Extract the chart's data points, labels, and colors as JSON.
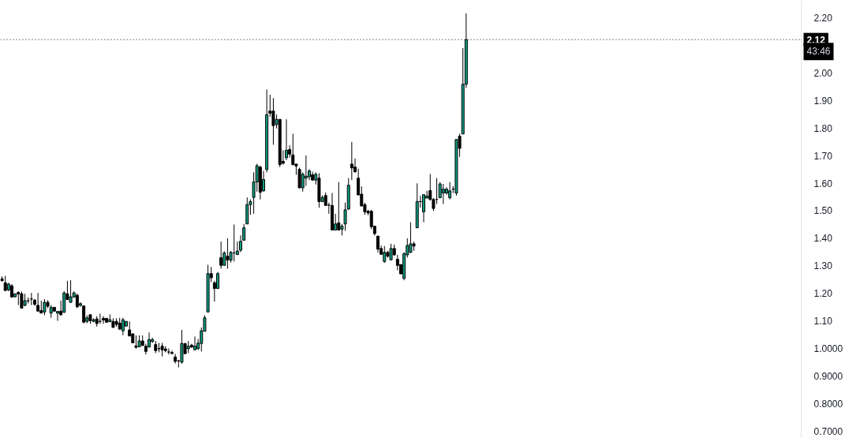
{
  "chart_data": {
    "type": "candlestick",
    "categories": [
      null,
      null,
      null,
      null,
      null,
      null,
      null,
      null,
      null,
      null,
      null,
      null,
      null,
      null,
      null,
      null,
      null,
      null,
      null,
      null,
      null,
      null,
      null,
      null,
      null,
      null,
      null,
      null,
      null,
      null,
      null,
      null,
      null,
      null,
      null,
      null,
      null,
      null,
      null,
      null,
      null,
      null,
      null,
      null,
      null,
      null,
      null,
      null,
      null,
      null,
      null,
      null,
      null,
      null,
      null,
      null,
      null,
      null,
      null,
      null,
      null,
      null,
      null,
      null,
      null,
      null,
      null,
      null,
      null,
      null,
      null,
      null,
      null,
      null,
      null,
      null,
      null,
      null,
      null,
      null,
      null,
      null,
      null,
      null,
      null,
      null,
      null,
      null,
      null,
      null,
      null,
      null,
      null,
      null,
      null,
      null,
      null,
      null,
      null,
      null,
      null,
      null,
      null,
      null,
      null,
      null,
      null,
      null,
      null,
      null,
      null,
      null,
      null,
      null,
      null,
      null,
      null,
      null,
      null,
      null,
      null,
      null,
      null,
      null,
      null,
      null,
      null,
      null,
      null,
      null,
      null,
      null,
      null,
      null,
      null,
      null,
      null,
      null,
      null,
      null,
      null,
      null,
      null,
      null,
      null,
      null,
      null,
      null,
      null,
      null,
      null,
      null,
      null,
      null,
      null,
      null,
      null,
      null,
      null,
      null,
      null,
      null,
      null,
      null,
      null,
      null,
      null,
      null,
      null,
      null,
      null,
      null,
      null,
      null,
      null,
      null,
      null,
      null,
      null,
      null,
      null,
      null,
      null,
      null,
      null,
      null,
      null,
      null,
      null,
      null,
      null,
      null,
      null,
      null,
      null,
      null,
      null,
      null,
      null,
      null,
      null,
      null,
      null,
      null,
      null,
      null,
      null,
      null,
      null,
      null,
      null,
      null,
      null,
      null,
      null,
      null,
      null,
      null,
      null,
      null,
      null,
      null,
      null,
      null,
      null,
      null,
      null,
      null,
      null,
      null,
      null,
      null,
      null,
      null,
      null,
      null,
      null,
      null,
      null,
      null,
      null,
      null,
      null,
      null,
      null
    ],
    "ohlc": [
      [
        1.253,
        1.262,
        1.244,
        1.246
      ],
      [
        1.239,
        1.264,
        1.208,
        1.211
      ],
      [
        1.213,
        1.239,
        1.208,
        1.234
      ],
      [
        1.228,
        1.234,
        1.187,
        1.187
      ],
      [
        1.188,
        1.199,
        1.186,
        1.199
      ],
      [
        1.204,
        1.208,
        1.158,
        1.198
      ],
      [
        1.199,
        1.207,
        1.147,
        1.147
      ],
      [
        1.157,
        1.199,
        1.154,
        1.174
      ],
      [
        1.174,
        1.186,
        1.164,
        1.174
      ],
      [
        1.18,
        1.202,
        1.158,
        1.18
      ],
      [
        1.176,
        1.18,
        1.155,
        1.161
      ],
      [
        1.157,
        1.202,
        1.136,
        1.136
      ],
      [
        1.138,
        1.174,
        1.129,
        1.129
      ],
      [
        1.133,
        1.18,
        1.121,
        1.168
      ],
      [
        1.168,
        1.176,
        1.147,
        1.154
      ],
      [
        1.129,
        1.158,
        1.112,
        1.15
      ],
      [
        1.15,
        1.15,
        1.136,
        1.136
      ],
      [
        1.129,
        1.135,
        1.101,
        1.135
      ],
      [
        1.136,
        1.174,
        1.12,
        1.123
      ],
      [
        1.132,
        1.208,
        1.13,
        1.202
      ],
      [
        1.199,
        1.246,
        1.177,
        1.178
      ],
      [
        1.168,
        1.248,
        1.166,
        1.188
      ],
      [
        1.187,
        1.208,
        1.187,
        1.202
      ],
      [
        1.194,
        1.199,
        1.147,
        1.152
      ],
      [
        1.157,
        1.168,
        1.152,
        1.163
      ],
      [
        1.155,
        1.155,
        1.092,
        1.096
      ],
      [
        1.099,
        1.121,
        1.092,
        1.112
      ],
      [
        1.123,
        1.123,
        1.09,
        1.101
      ],
      [
        1.099,
        1.11,
        1.096,
        1.105
      ],
      [
        1.108,
        1.118,
        1.08,
        1.091
      ],
      [
        1.099,
        1.127,
        1.09,
        1.099
      ],
      [
        1.11,
        1.118,
        1.09,
        1.104
      ],
      [
        1.11,
        1.11,
        1.094,
        1.096
      ],
      [
        1.098,
        1.124,
        1.096,
        1.105
      ],
      [
        1.099,
        1.11,
        1.077,
        1.077
      ],
      [
        1.099,
        1.11,
        1.08,
        1.088
      ],
      [
        1.093,
        1.112,
        1.068,
        1.071
      ],
      [
        1.065,
        1.112,
        1.049,
        1.105
      ],
      [
        1.082,
        1.099,
        1.08,
        1.099
      ],
      [
        1.068,
        1.099,
        1.046,
        1.046
      ],
      [
        1.054,
        1.054,
        1.021,
        1.021
      ],
      [
        1.01,
        1.048,
        1.0,
        1.005
      ],
      [
        1.007,
        1.048,
        1.007,
        1.028
      ],
      [
        1.028,
        1.048,
        1.009,
        1.012
      ],
      [
        1.009,
        1.018,
        0.979,
        0.99
      ],
      [
        1.007,
        1.059,
        1.003,
        1.033
      ],
      [
        1.026,
        1.04,
        1.021,
        1.033
      ],
      [
        1.015,
        1.028,
        0.984,
        0.993
      ],
      [
        1.0,
        1.021,
        0.987,
        1.0
      ],
      [
        1.009,
        1.021,
        0.972,
        0.996
      ],
      [
        0.999,
        1.009,
        0.987,
        0.993
      ],
      [
        0.988,
        1.001,
        0.979,
        0.988
      ],
      [
        0.986,
        0.993,
        0.979,
        0.983
      ],
      [
        0.97,
        0.981,
        0.946,
        0.954
      ],
      [
        0.956,
        0.959,
        0.932,
        0.956
      ],
      [
        0.951,
        1.068,
        0.946,
        1.019
      ],
      [
        1.019,
        1.019,
        0.982,
        0.982
      ],
      [
        1.0,
        1.028,
        0.984,
        1.009
      ],
      [
        1.013,
        1.018,
        1.003,
        1.006
      ],
      [
        0.996,
        1.044,
        0.996,
        1.009
      ],
      [
        1.0,
        1.035,
        0.996,
        1.02
      ],
      [
        1.019,
        1.077,
        0.99,
        1.065
      ],
      [
        1.063,
        1.121,
        1.063,
        1.112
      ],
      [
        1.133,
        1.304,
        1.133,
        1.272
      ],
      [
        1.272,
        1.296,
        1.241,
        1.257
      ],
      [
        1.239,
        1.246,
        1.171,
        1.218
      ],
      [
        1.218,
        1.278,
        1.218,
        1.272
      ],
      [
        1.33,
        1.388,
        1.29,
        1.302
      ],
      [
        1.302,
        1.353,
        1.302,
        1.347
      ],
      [
        1.335,
        1.4,
        1.29,
        1.321
      ],
      [
        1.321,
        1.354,
        1.312,
        1.349
      ],
      [
        1.347,
        1.45,
        1.316,
        1.347
      ],
      [
        1.341,
        1.388,
        1.341,
        1.354
      ],
      [
        1.357,
        1.411,
        1.35,
        1.389
      ],
      [
        1.393,
        1.452,
        1.393,
        1.438
      ],
      [
        1.452,
        1.548,
        1.452,
        1.522
      ],
      [
        1.522,
        1.541,
        1.485,
        1.533
      ],
      [
        1.548,
        1.639,
        1.489,
        1.604
      ],
      [
        1.604,
        1.67,
        1.569,
        1.663
      ],
      [
        1.658,
        1.663,
        1.541,
        1.567
      ],
      [
        1.572,
        1.644,
        1.569,
        1.613
      ],
      [
        1.649,
        1.939,
        1.639,
        1.848
      ],
      [
        1.861,
        1.92,
        1.84,
        1.853
      ],
      [
        1.861,
        1.908,
        1.739,
        1.808
      ],
      [
        1.812,
        1.848,
        1.798,
        1.831
      ],
      [
        1.831,
        1.831,
        1.658,
        1.667
      ],
      [
        1.679,
        1.719,
        1.667,
        1.672
      ],
      [
        1.692,
        1.831,
        1.683,
        1.719
      ],
      [
        1.722,
        1.737,
        1.692,
        1.705
      ],
      [
        1.702,
        1.779,
        1.664,
        1.667
      ],
      [
        1.669,
        1.669,
        1.63,
        1.662
      ],
      [
        1.65,
        1.656,
        1.581,
        1.583
      ],
      [
        1.583,
        1.639,
        1.569,
        1.632
      ],
      [
        1.618,
        1.7,
        1.59,
        1.625
      ],
      [
        1.623,
        1.65,
        1.611,
        1.644
      ],
      [
        1.63,
        1.641,
        1.609,
        1.611
      ],
      [
        1.611,
        1.639,
        1.595,
        1.632
      ],
      [
        1.618,
        1.636,
        1.511,
        1.533
      ],
      [
        1.533,
        1.555,
        1.531,
        1.548
      ],
      [
        1.555,
        1.566,
        1.519,
        1.519
      ],
      [
        1.52,
        1.529,
        1.489,
        1.52
      ],
      [
        1.519,
        1.564,
        1.43,
        1.43
      ],
      [
        1.43,
        1.489,
        1.43,
        1.452
      ],
      [
        1.456,
        1.604,
        1.43,
        1.43
      ],
      [
        1.433,
        1.452,
        1.41,
        1.444
      ],
      [
        1.452,
        1.529,
        1.427,
        1.503
      ],
      [
        1.506,
        1.618,
        1.503,
        1.592
      ],
      [
        1.669,
        1.749,
        1.611,
        1.655
      ],
      [
        1.658,
        1.689,
        1.638,
        1.641
      ],
      [
        1.618,
        1.652,
        1.557,
        1.557
      ],
      [
        1.56,
        1.588,
        1.517,
        1.517
      ],
      [
        1.522,
        1.529,
        1.485,
        1.496
      ],
      [
        1.498,
        1.503,
        1.484,
        1.492
      ],
      [
        1.498,
        1.503,
        1.433,
        1.442
      ],
      [
        1.444,
        1.444,
        1.41,
        1.417
      ],
      [
        1.408,
        1.408,
        1.349,
        1.361
      ],
      [
        1.363,
        1.374,
        1.342,
        1.342
      ],
      [
        1.316,
        1.372,
        1.311,
        1.349
      ],
      [
        1.349,
        1.354,
        1.33,
        1.335
      ],
      [
        1.322,
        1.38,
        1.322,
        1.363
      ],
      [
        1.363,
        1.377,
        1.337,
        1.34
      ],
      [
        1.324,
        1.34,
        1.284,
        1.302
      ],
      [
        1.305,
        1.305,
        1.271,
        1.271
      ],
      [
        1.255,
        1.35,
        1.248,
        1.344
      ],
      [
        1.34,
        1.4,
        1.33,
        1.374
      ],
      [
        1.349,
        1.458,
        1.347,
        1.38
      ],
      [
        1.38,
        1.388,
        1.355,
        1.372
      ],
      [
        1.438,
        1.599,
        1.438,
        1.533
      ],
      [
        1.533,
        1.554,
        1.511,
        1.533
      ],
      [
        1.496,
        1.558,
        1.458,
        1.558
      ],
      [
        1.546,
        1.572,
        1.544,
        1.553
      ],
      [
        1.573,
        1.633,
        1.536,
        1.541
      ],
      [
        1.541,
        1.546,
        1.499,
        1.508
      ],
      [
        1.541,
        1.618,
        1.524,
        1.541
      ],
      [
        1.547,
        1.603,
        1.547,
        1.597
      ],
      [
        1.564,
        1.597,
        1.524,
        1.578
      ],
      [
        1.564,
        1.585,
        1.558,
        1.578
      ],
      [
        1.547,
        1.604,
        1.541,
        1.572
      ],
      [
        1.578,
        1.589,
        1.564,
        1.578
      ],
      [
        1.564,
        1.758,
        1.555,
        1.758
      ],
      [
        1.77,
        1.779,
        1.695,
        1.726
      ],
      [
        1.778,
        2.089,
        1.778,
        1.958
      ],
      [
        1.958,
        2.215,
        1.945,
        2.12
      ],
      null,
      null,
      null,
      null,
      null,
      null,
      null,
      null,
      null,
      null,
      null,
      null,
      null,
      null,
      null,
      null,
      null,
      null,
      null,
      null,
      null,
      null,
      null,
      null,
      null,
      null,
      null,
      null,
      null,
      null,
      null,
      null,
      null,
      null,
      null,
      null,
      null,
      null,
      null,
      null,
      null,
      null,
      null,
      null,
      null,
      null,
      null,
      null,
      null,
      null,
      null,
      null,
      null,
      null,
      null,
      null,
      null,
      null,
      null,
      null,
      null,
      null,
      null,
      null,
      null,
      null,
      null,
      null,
      null,
      null,
      null,
      null,
      null,
      null,
      null,
      null,
      null,
      null,
      null,
      null,
      null,
      null,
      null,
      null,
      null,
      null,
      null,
      null,
      null,
      null,
      null,
      null,
      null,
      null,
      null,
      null,
      null,
      null,
      null,
      null,
      null,
      null
    ],
    "colors": [
      "#000000",
      "#000000",
      "#0e9f83",
      "#000000",
      "#0e9f83",
      "#000000",
      "#000000",
      "#0e9f83",
      "#000000",
      "#000000",
      "#000000",
      "#000000",
      "#000000",
      "#0e9f83",
      "#000000",
      "#0e9f83",
      "#000000",
      "#0e9f83",
      "#000000",
      "#0e9f83",
      "#000000",
      "#0e9f83",
      "#0e9f83",
      "#000000",
      "#0e9f83",
      "#000000",
      "#0e9f83",
      "#000000",
      "#0e9f83",
      "#000000",
      "#000000",
      "#000000",
      "#000000",
      "#0e9f83",
      "#000000",
      "#000000",
      "#000000",
      "#0e9f83",
      "#0e9f83",
      "#000000",
      "#000000",
      "#000000",
      "#0e9f83",
      "#000000",
      "#000000",
      "#0e9f83",
      "#0e9f83",
      "#000000",
      "#000000",
      "#000000",
      "#000000",
      "#000000",
      "#000000",
      "#000000",
      "#000000",
      "#0e9f83",
      "#000000",
      "#0e9f83",
      "#000000",
      "#0e9f83",
      "#0e9f83",
      "#0e9f83",
      "#0e9f83",
      "#0e9f83",
      "#000000",
      "#000000",
      "#0e9f83",
      "#000000",
      "#0e9f83",
      "#000000",
      "#0e9f83",
      "#000000",
      "#0e9f83",
      "#0e9f83",
      "#0e9f83",
      "#0e9f83",
      "#0e9f83",
      "#0e9f83",
      "#0e9f83",
      "#000000",
      "#0e9f83",
      "#0e9f83",
      "#000000",
      "#000000",
      "#0e9f83",
      "#000000",
      "#000000",
      "#0e9f83",
      "#000000",
      "#000000",
      "#000000",
      "#000000",
      "#0e9f83",
      "#0e9f83",
      "#0e9f83",
      "#000000",
      "#0e9f83",
      "#000000",
      "#0e9f83",
      "#000000",
      "#000000",
      "#000000",
      "#0e9f83",
      "#000000",
      "#0e9f83",
      "#0e9f83",
      "#0e9f83",
      "#000000",
      "#000000",
      "#000000",
      "#000000",
      "#000000",
      "#000000",
      "#000000",
      "#000000",
      "#000000",
      "#000000",
      "#0e9f83",
      "#000000",
      "#0e9f83",
      "#000000",
      "#000000",
      "#000000",
      "#0e9f83",
      "#0e9f83",
      "#0e9f83",
      "#000000",
      "#0e9f83",
      "#000000",
      "#0e9f83",
      "#0e9f83",
      "#000000",
      "#000000",
      "#000000",
      "#0e9f83",
      "#0e9f83",
      "#0e9f83",
      "#0e9f83",
      "#000000",
      "#0e9f83",
      "#000000",
      "#0e9f83",
      "#0e9f83",
      null,
      null,
      null,
      null,
      null,
      null,
      null,
      null,
      null,
      null,
      null,
      null,
      null,
      null,
      null,
      null,
      null,
      null,
      null,
      null,
      null,
      null,
      null,
      null,
      null,
      null,
      null,
      null,
      null,
      null,
      null,
      null,
      null,
      null,
      null,
      null,
      null,
      null,
      null,
      null,
      null,
      null,
      null,
      null,
      null,
      null,
      null,
      null,
      null,
      null,
      null,
      null,
      null,
      null,
      null,
      null,
      null,
      null,
      null,
      null,
      null,
      null,
      null,
      null,
      null,
      null,
      null,
      null,
      null,
      null,
      null,
      null,
      null,
      null,
      null,
      null,
      null,
      null,
      null,
      null,
      null,
      null,
      null,
      null,
      null,
      null,
      null,
      null,
      null,
      null,
      null,
      null,
      null,
      null,
      null,
      null,
      null,
      null,
      null,
      null,
      null,
      null
    ],
    "ylim": [
      0.675,
      2.262
    ],
    "yticks": [
      {
        "value": 2.2,
        "label": "2.20"
      },
      {
        "value": 2.0,
        "label": "2.00"
      },
      {
        "value": 1.9,
        "label": "1.90"
      },
      {
        "value": 1.8,
        "label": "1.80"
      },
      {
        "value": 1.7,
        "label": "1.70"
      },
      {
        "value": 1.6,
        "label": "1.60"
      },
      {
        "value": 1.5,
        "label": "1.50"
      },
      {
        "value": 1.4,
        "label": "1.40"
      },
      {
        "value": 1.3,
        "label": "1.30"
      },
      {
        "value": 1.2,
        "label": "1.20"
      },
      {
        "value": 1.1,
        "label": "1.10"
      },
      {
        "value": 1.0,
        "label": "1.0000"
      },
      {
        "value": 0.9,
        "label": "0.9000"
      },
      {
        "value": 0.8,
        "label": "0.8000"
      },
      {
        "value": 0.7,
        "label": "0.7000"
      }
    ],
    "tick_labels": "y",
    "ref_lines": [
      {
        "axis": "y",
        "value": 2.12,
        "label": "2.12",
        "color": "#000000",
        "line_style": "dotted"
      }
    ],
    "annotations": [
      "43:46"
    ]
  }
}
